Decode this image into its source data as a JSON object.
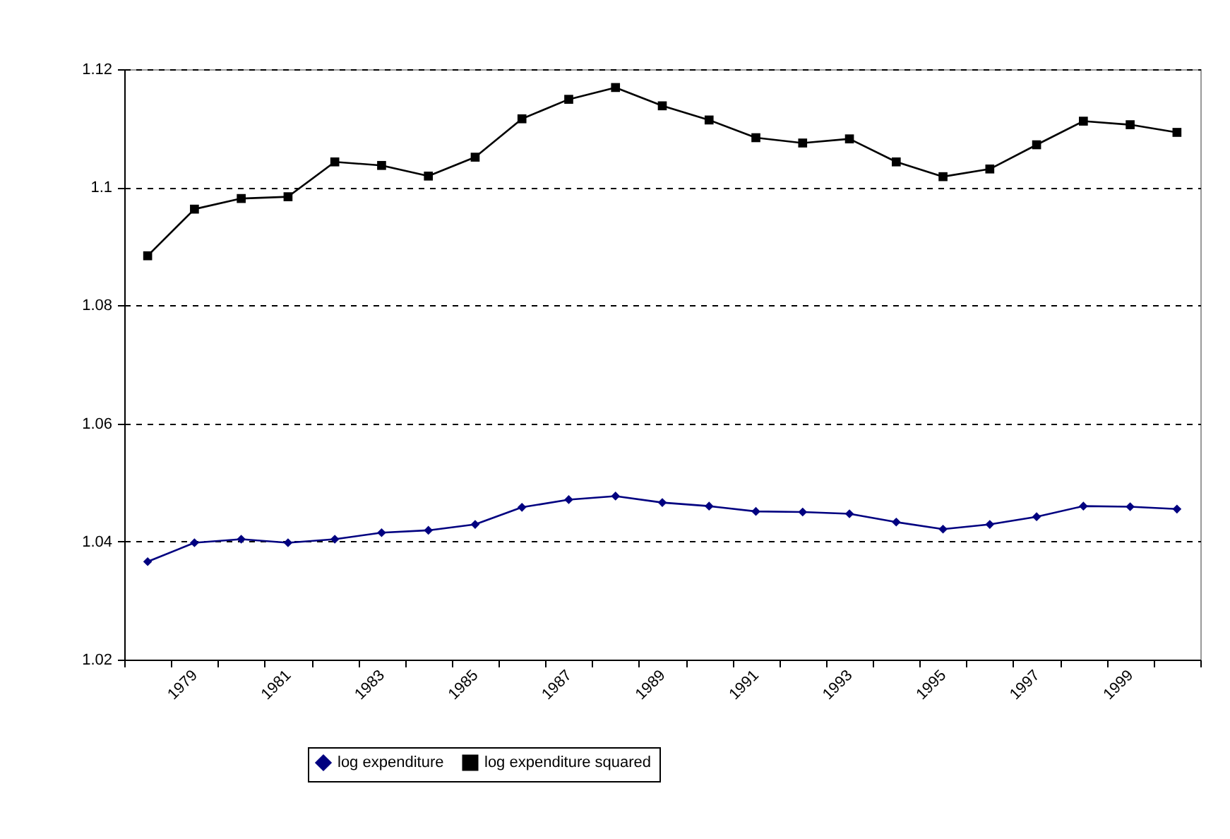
{
  "chart_data": {
    "type": "line",
    "categories": [
      null,
      "1979",
      null,
      "1981",
      null,
      "1983",
      null,
      "1985",
      null,
      "1987",
      null,
      "1989",
      null,
      "1991",
      null,
      "1993",
      null,
      "1995",
      null,
      "1997",
      null,
      "1999",
      null
    ],
    "series": [
      {
        "name": "log expenditure",
        "color": "#000080",
        "marker": "diamond",
        "values": [
          1.0366,
          1.0398,
          1.0404,
          1.0398,
          1.0404,
          1.0415,
          1.0419,
          1.0429,
          1.0458,
          1.0471,
          1.0477,
          1.0466,
          1.046,
          1.0451,
          1.045,
          1.0447,
          1.0433,
          1.0421,
          1.0429,
          1.0442,
          1.046,
          1.0459,
          1.0455
        ]
      },
      {
        "name": "log expenditure squared",
        "color": "#000000",
        "marker": "square",
        "values": [
          1.0884,
          1.0963,
          1.0981,
          1.0984,
          1.1043,
          1.1037,
          1.1019,
          1.1051,
          1.1116,
          1.1149,
          1.1169,
          1.1138,
          1.1114,
          1.1084,
          1.1075,
          1.1082,
          1.1043,
          1.1018,
          1.1031,
          1.1072,
          1.1112,
          1.1106,
          1.1093
        ]
      }
    ],
    "ylim": [
      1.02,
      1.12
    ],
    "yticks": [
      1.02,
      1.04,
      1.06,
      1.08,
      1.1,
      1.12
    ],
    "grid": "y",
    "legend": "bottom",
    "line_style": "solid"
  }
}
